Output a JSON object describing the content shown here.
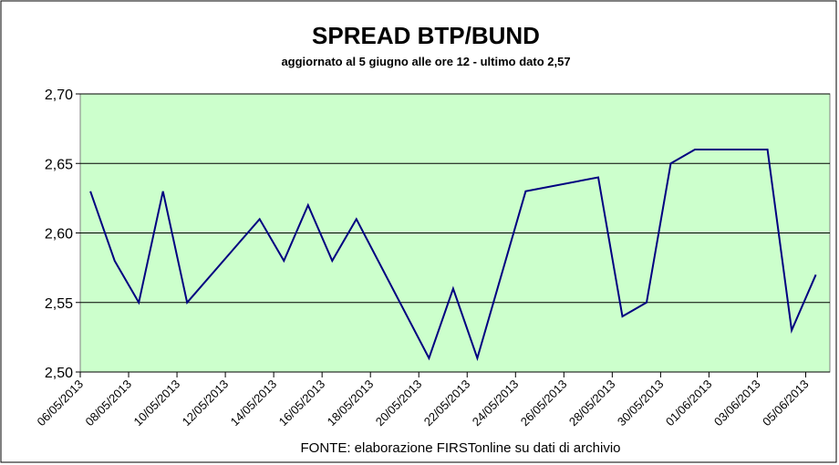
{
  "chart_data": {
    "type": "line",
    "title": "SPREAD  BTP/BUND",
    "subtitle": "aggiornato al 5 giugno alle ore 12 - ultimo dato 2,57",
    "source": "FONTE: elaborazione FIRSTonline su dati di archivio",
    "x": [
      "06/05/2013",
      "07/05/2013",
      "08/05/2013",
      "09/05/2013",
      "10/05/2013",
      "13/05/2013",
      "14/05/2013",
      "15/05/2013",
      "16/05/2013",
      "17/05/2013",
      "20/05/2013",
      "21/05/2013",
      "22/05/2013",
      "23/05/2013",
      "24/05/2013",
      "27/05/2013",
      "28/05/2013",
      "29/05/2013",
      "30/05/2013",
      "31/05/2013",
      "03/06/2013",
      "04/06/2013",
      "05/06/2013"
    ],
    "series": [
      {
        "name": "Spread BTP/Bund",
        "color": "#000080",
        "values": [
          2.63,
          2.58,
          2.55,
          2.63,
          2.55,
          2.61,
          2.58,
          2.62,
          2.58,
          2.61,
          2.51,
          2.56,
          2.51,
          2.57,
          2.63,
          2.64,
          2.54,
          2.55,
          2.65,
          2.66,
          2.66,
          2.53,
          2.57
        ]
      }
    ],
    "xlim": [
      "06/05/2013",
      "06/06/2013"
    ],
    "xticks": [
      "06/05/2013",
      "08/05/2013",
      "10/05/2013",
      "12/05/2013",
      "14/05/2013",
      "16/05/2013",
      "18/05/2013",
      "20/05/2013",
      "22/05/2013",
      "24/05/2013",
      "26/05/2013",
      "28/05/2013",
      "30/05/2013",
      "01/06/2013",
      "03/06/2013",
      "05/06/2013"
    ],
    "ylim": [
      2.5,
      2.7
    ],
    "yticks": [
      {
        "value": 2.5,
        "label": "2,50"
      },
      {
        "value": 2.55,
        "label": "2,55"
      },
      {
        "value": 2.6,
        "label": "2,60"
      },
      {
        "value": 2.65,
        "label": "2,65"
      },
      {
        "value": 2.7,
        "label": "2,70"
      }
    ],
    "grid": true,
    "plot_background": "#ccffcc"
  }
}
